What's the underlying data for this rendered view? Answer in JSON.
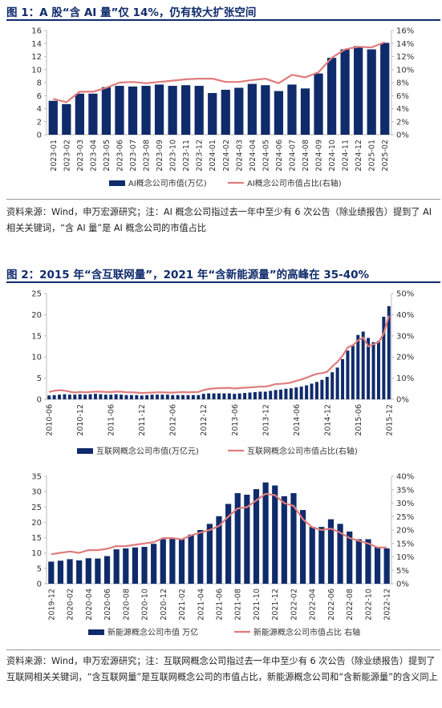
{
  "figures": {
    "fig1": {
      "title": "图 1：A 股“含 AI 量”仅 14%，仍有较大扩张空间"
    },
    "fig2": {
      "title": "图 2：2015 年“含互联网量”，2021 年“含新能源量”的高峰在 35-40%"
    }
  },
  "notes": {
    "note1": "资料来源：Wind，申万宏源研究；注：AI 概念公司指过去一年中至少有 6 次公告（除业绩报告）提到了 AI 相关关键词，“含 AI 量”是 AI 概念公司的市值占比",
    "note2": "资料来源：Wind，申万宏源研究；注：互联网概念公司指过去一年中至少有 6 次公告（除业绩报告）提到了互联网相关关键词，“含互联网量”是互联网概念公司的市值占比，新能源概念公司和“含新能源量”的含义同上"
  },
  "colors": {
    "bar": "#0f2b6b",
    "line": "#e07c7c",
    "title": "#0f2b6b"
  },
  "chart_data": [
    {
      "type": "bar",
      "id": "ai",
      "categories": [
        "2023-01",
        "2023-02",
        "2023-03",
        "2023-04",
        "2023-05",
        "2023-06",
        "2023-07",
        "2023-08",
        "2023-09",
        "2023-10",
        "2023-11",
        "2023-12",
        "2024-01",
        "2024-02",
        "2024-03",
        "2024-04",
        "2024-05",
        "2024-06",
        "2024-07",
        "2024-08",
        "2024-09",
        "2024-10",
        "2024-11",
        "2024-12",
        "2025-01",
        "2025-02"
      ],
      "x_tick_labels": [
        "2023-01",
        "2023-02",
        "2023-03",
        "2023-04",
        "2023-05",
        "2023-06",
        "2023-07",
        "2023-08",
        "2023-09",
        "2023-10",
        "2023-11",
        "2023-12",
        "2024-01",
        "2024-02",
        "2024-03",
        "2024-04",
        "2024-05",
        "2024-06",
        "2024-07",
        "2024-08",
        "2024-09",
        "2024-10",
        "2024-11",
        "2024-12",
        "2025-01",
        "2025-02"
      ],
      "series": [
        {
          "name": "AI概念公司市值(万亿)",
          "type": "bar",
          "axis": "left",
          "values": [
            5.2,
            4.7,
            6.3,
            6.3,
            7.3,
            7.5,
            7.4,
            7.5,
            7.7,
            7.5,
            7.6,
            7.5,
            6.4,
            6.9,
            7.2,
            7.8,
            7.6,
            6.7,
            7.7,
            7.1,
            9.4,
            11.8,
            13.1,
            13.6,
            13.1,
            14.1
          ]
        },
        {
          "name": "AI概念公司市值占比(右轴)",
          "type": "line",
          "axis": "right",
          "values": [
            5.5,
            5.0,
            6.6,
            6.6,
            7.2,
            8.0,
            8.1,
            7.9,
            8.1,
            8.3,
            8.5,
            8.6,
            8.6,
            8.1,
            8.1,
            8.4,
            8.6,
            7.9,
            9.2,
            8.8,
            9.6,
            11.8,
            13.1,
            13.5,
            13.4,
            14.2
          ]
        }
      ],
      "ylim": [
        0,
        16
      ],
      "yticks": [
        0,
        2,
        4,
        6,
        8,
        10,
        12,
        14,
        16
      ],
      "y2lim": [
        0,
        16
      ],
      "y2ticks": [
        "0%",
        "2%",
        "4%",
        "6%",
        "8%",
        "10%",
        "12%",
        "14%",
        "16%"
      ],
      "legend": "bottom"
    },
    {
      "type": "bar",
      "id": "internet",
      "categories": [
        "2010-06",
        "2010-07",
        "2010-08",
        "2010-09",
        "2010-10",
        "2010-11",
        "2010-12",
        "2011-01",
        "2011-02",
        "2011-03",
        "2011-04",
        "2011-05",
        "2011-06",
        "2011-07",
        "2011-08",
        "2011-09",
        "2011-10",
        "2011-11",
        "2011-12",
        "2012-01",
        "2012-02",
        "2012-03",
        "2012-04",
        "2012-05",
        "2012-06",
        "2012-07",
        "2012-08",
        "2012-09",
        "2012-10",
        "2012-11",
        "2012-12",
        "2013-01",
        "2013-02",
        "2013-03",
        "2013-04",
        "2013-05",
        "2013-06",
        "2013-07",
        "2013-08",
        "2013-09",
        "2013-10",
        "2013-11",
        "2013-12",
        "2014-01",
        "2014-02",
        "2014-03",
        "2014-04",
        "2014-05",
        "2014-06",
        "2014-07",
        "2014-08",
        "2014-09",
        "2014-10",
        "2014-11",
        "2014-12",
        "2015-01",
        "2015-02",
        "2015-03",
        "2015-04",
        "2015-05",
        "2015-06",
        "2015-07",
        "2015-08",
        "2015-09",
        "2015-10",
        "2015-11",
        "2015-12"
      ],
      "x_tick_labels": [
        "2010-06",
        "2010-12",
        "2011-06",
        "2011-12",
        "2012-06",
        "2012-12",
        "2013-06",
        "2013-12",
        "2014-06",
        "2014-12",
        "2015-06",
        "2015-12"
      ],
      "series": [
        {
          "name": "互联网概念公司市值(万亿元)",
          "type": "bar",
          "axis": "left",
          "values": [
            0.9,
            1.0,
            1.1,
            1.2,
            1.1,
            1.1,
            1.2,
            1.1,
            1.2,
            1.3,
            1.2,
            1.1,
            1.1,
            1.2,
            1.1,
            1.0,
            1.0,
            1.0,
            0.9,
            1.0,
            1.1,
            1.1,
            1.1,
            1.1,
            1.0,
            1.0,
            1.0,
            1.0,
            1.0,
            1.0,
            1.3,
            1.4,
            1.4,
            1.4,
            1.4,
            1.4,
            1.3,
            1.4,
            1.5,
            1.6,
            1.7,
            1.8,
            1.8,
            2.0,
            2.2,
            2.3,
            2.5,
            2.6,
            2.8,
            3.0,
            3.3,
            3.7,
            4.1,
            4.6,
            5.3,
            6.4,
            7.5,
            9.5,
            11.5,
            12.8,
            15.2,
            16.0,
            14.5,
            13.5,
            13.8,
            19.5,
            22.0
          ]
        },
        {
          "name": "互联网概念公司市值占比(右轴)",
          "type": "line",
          "axis": "right",
          "values": [
            3.5,
            4.0,
            4.3,
            4.1,
            3.6,
            3.2,
            3.5,
            3.3,
            3.5,
            3.6,
            3.6,
            3.5,
            3.4,
            3.6,
            3.6,
            3.3,
            3.3,
            3.2,
            3.0,
            3.1,
            3.2,
            3.3,
            3.3,
            3.2,
            3.2,
            3.3,
            3.4,
            3.3,
            3.4,
            3.5,
            4.3,
            4.9,
            5.1,
            5.3,
            5.3,
            5.4,
            5.1,
            5.3,
            5.5,
            5.6,
            5.8,
            6.0,
            6.0,
            6.5,
            7.2,
            7.3,
            7.5,
            7.9,
            8.7,
            9.4,
            10.2,
            11.2,
            12.0,
            12.4,
            13.0,
            15.5,
            17.7,
            20.5,
            24.5,
            25.5,
            27.8,
            29.2,
            25.0,
            26.0,
            27.0,
            31.0,
            39.5
          ]
        }
      ],
      "ylim": [
        0,
        25
      ],
      "yticks": [
        0,
        5,
        10,
        15,
        20,
        25
      ],
      "y2lim": [
        0,
        50
      ],
      "y2ticks": [
        "0%",
        "10%",
        "20%",
        "30%",
        "40%",
        "50%"
      ],
      "legend": "bottom"
    },
    {
      "type": "bar",
      "id": "new-energy",
      "categories": [
        "2019-12",
        "2020-01",
        "2020-02",
        "2020-03",
        "2020-04",
        "2020-05",
        "2020-06",
        "2020-07",
        "2020-08",
        "2020-09",
        "2020-10",
        "2020-11",
        "2020-12",
        "2021-01",
        "2021-02",
        "2021-03",
        "2021-04",
        "2021-05",
        "2021-06",
        "2021-07",
        "2021-08",
        "2021-09",
        "2021-10",
        "2021-11",
        "2021-12",
        "2022-01",
        "2022-02",
        "2022-03",
        "2022-04",
        "2022-05",
        "2022-06",
        "2022-07",
        "2022-08",
        "2022-09",
        "2022-10",
        "2022-11",
        "2022-12"
      ],
      "x_tick_labels": [
        "2019-12",
        "2020-02",
        "2020-04",
        "2020-06",
        "2020-08",
        "2020-10",
        "2020-12",
        "2021-02",
        "2021-04",
        "2021-06",
        "2021-08",
        "2021-10",
        "2021-12",
        "2022-02",
        "2022-04",
        "2022-06",
        "2022-08",
        "2022-10",
        "2022-12"
      ],
      "series": [
        {
          "name": "新能源概念公司市值 万亿",
          "type": "bar",
          "axis": "left",
          "values": [
            7.2,
            7.5,
            8.0,
            7.6,
            8.3,
            8.2,
            9.0,
            11.2,
            11.5,
            11.8,
            12.0,
            13.0,
            14.5,
            14.8,
            14.5,
            16.0,
            17.5,
            19.5,
            22.0,
            26.0,
            29.5,
            29.0,
            30.8,
            33.0,
            32.0,
            28.5,
            29.5,
            24.0,
            18.5,
            18.5,
            21.0,
            19.5,
            17.0,
            14.5,
            14.5,
            12.0,
            11.5
          ]
        },
        {
          "name": "新能源概念公司市值占比 右轴",
          "type": "line",
          "axis": "right",
          "values": [
            11,
            11.5,
            12,
            11.5,
            12.5,
            12.5,
            13,
            14,
            14,
            14.5,
            15,
            15.5,
            17,
            17,
            16.5,
            18,
            19,
            20,
            21.5,
            25,
            28,
            28.5,
            31,
            33.5,
            33,
            30,
            29,
            24,
            21,
            20,
            20.5,
            19,
            17,
            16,
            15,
            13.5,
            13.5
          ]
        }
      ],
      "ylim": [
        0,
        35
      ],
      "yticks": [
        0,
        5,
        10,
        15,
        20,
        25,
        30,
        35
      ],
      "y2lim": [
        0,
        40
      ],
      "y2ticks": [
        "0%",
        "5%",
        "10%",
        "15%",
        "20%",
        "25%",
        "30%",
        "35%",
        "40%"
      ],
      "legend": "bottom"
    }
  ]
}
